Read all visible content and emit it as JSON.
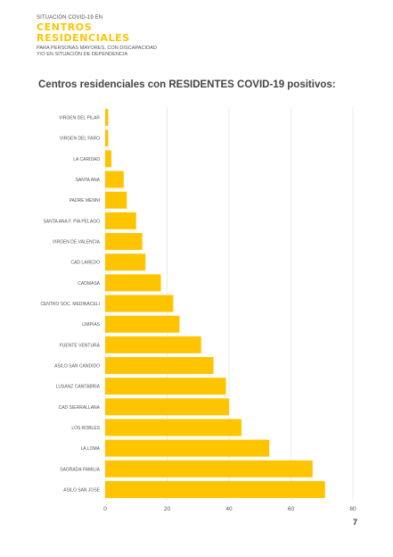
{
  "header": {
    "kicker": "SITUACIÓN COVID-19 EN",
    "title_line1": "CENTROS",
    "title_line2": "RESIDENCIALES",
    "sub_line1": "PARA PERSONAS MAYORES, CON DISCAPACIDAD",
    "sub_line2": "Y/O EN SITUACIÓN DE DEPENDENCIA"
  },
  "chart_title": "Centros residenciales con RESIDENTES COVID-19 positivos:",
  "page_number": "7",
  "colors": {
    "bar": "#ffc400",
    "accent": "#ffc400",
    "grid": "#e6e6e6",
    "text": "#555555"
  },
  "chart_data": {
    "type": "bar",
    "orientation": "horizontal",
    "categories": [
      "VIRGEN DEL PILAR",
      "VIRGEN DEL FARO",
      "LA CARIDAD",
      "SANTA ANA",
      "PADRE MENNI",
      "SANTA ANA F. PIA PELAGO",
      "VIRGEN DE VALENCIA",
      "CAD LAREDO",
      "CADMASA",
      "CENTRO SOC. MEDINACELI",
      "LIMPIAS",
      "FUENTE VENTURA",
      "ASILO SAN CANDIDO",
      "LUSANZ CANTABRIA",
      "CAD SIERRALLANA",
      "LOS ROBLES",
      "LA LOMA",
      "SAGRADA FAMILIA",
      "ASILO SAN JOSE"
    ],
    "values": [
      1,
      1,
      2,
      6,
      7,
      10,
      12,
      13,
      18,
      22,
      24,
      31,
      35,
      39,
      40,
      44,
      53,
      67,
      71
    ],
    "xlim": [
      0,
      80
    ],
    "xticks": [
      0,
      20,
      40,
      60,
      80
    ],
    "grid": true
  }
}
